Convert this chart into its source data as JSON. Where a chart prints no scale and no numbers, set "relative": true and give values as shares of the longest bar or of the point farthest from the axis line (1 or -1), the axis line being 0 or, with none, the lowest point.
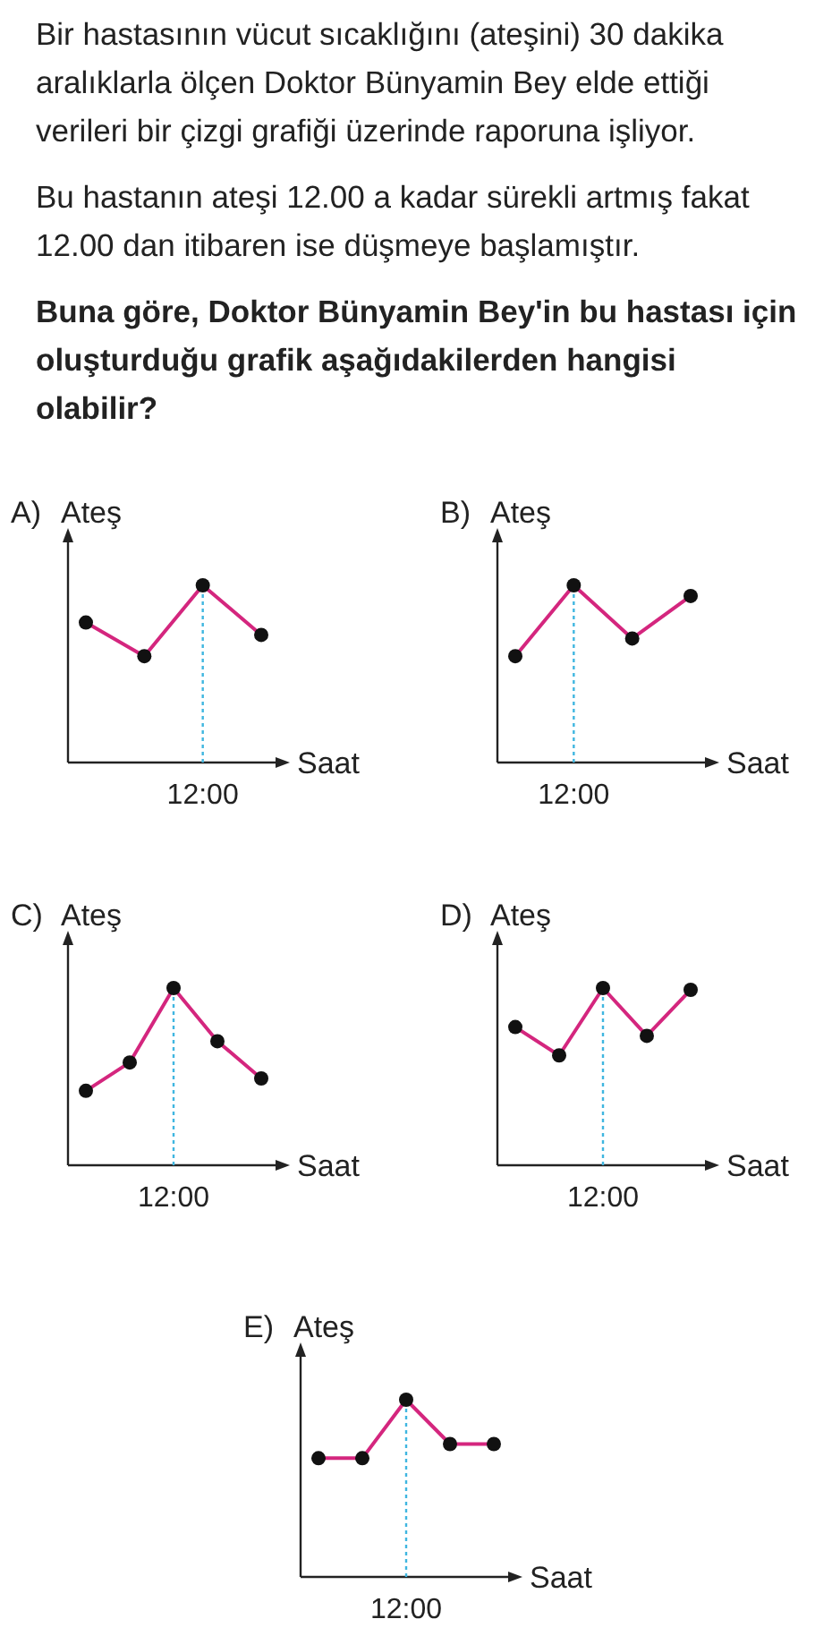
{
  "chart_data": [
    {
      "type": "other",
      "annotations": [
        "Bir hastasının vücut sıcaklığını (ateşini) 30 dakika aralıklarla ölçen Doktor Bünyamin Bey elde ettiği verileri bir çizgi grafiği üzerinde raporuna işliyor.",
        "Bu hastanın ateşi 12.00 a kadar sürekli artmış fakat 12.00 dan itibaren ise düşmeye başlamıştır.",
        "Buna göre, Doktor Bünyamin Bey'in bu hastası için oluşturduğu grafik aşağıdakilerden hangisi olabilir?"
      ]
    },
    {
      "type": "line",
      "title": "A)",
      "xlabel": "Saat",
      "ylabel": "Ateş",
      "relative": true,
      "marker": "circle",
      "categories": [
        null,
        null,
        null,
        null
      ],
      "series": [
        {
          "color": "#d4267e",
          "values": [
            0.79,
            0.6,
            1,
            0.72
          ]
        }
      ],
      "ref_lines": [
        {
          "axis": "x",
          "value": "12:00",
          "color": "#3fb6e0",
          "line_style": "dotted"
        }
      ]
    },
    {
      "type": "line",
      "title": "B)",
      "xlabel": "Saat",
      "ylabel": "Ateş",
      "relative": true,
      "marker": "circle",
      "categories": [
        null,
        null,
        null,
        null
      ],
      "series": [
        {
          "color": "#d4267e",
          "values": [
            0.6,
            1,
            0.7,
            0.94
          ]
        }
      ],
      "ref_lines": [
        {
          "axis": "x",
          "value": "12:00",
          "color": "#3fb6e0",
          "line_style": "dotted"
        }
      ]
    },
    {
      "type": "line",
      "title": "C)",
      "xlabel": "Saat",
      "ylabel": "Ateş",
      "relative": true,
      "marker": "circle",
      "categories": [
        null,
        null,
        null,
        null,
        null
      ],
      "series": [
        {
          "color": "#d4267e",
          "values": [
            0.42,
            0.58,
            1,
            0.7,
            0.49
          ]
        }
      ],
      "ref_lines": [
        {
          "axis": "x",
          "value": "12:00",
          "color": "#3fb6e0",
          "line_style": "dotted"
        }
      ]
    },
    {
      "type": "line",
      "title": "D)",
      "xlabel": "Saat",
      "ylabel": "Ateş",
      "relative": true,
      "marker": "circle",
      "categories": [
        null,
        null,
        null,
        null,
        null
      ],
      "series": [
        {
          "color": "#d4267e",
          "values": [
            0.78,
            0.62,
            1,
            0.73,
            0.99
          ]
        }
      ],
      "ref_lines": [
        {
          "axis": "x",
          "value": "12:00",
          "color": "#3fb6e0",
          "line_style": "dotted"
        }
      ]
    },
    {
      "type": "line",
      "title": "E)",
      "xlabel": "Saat",
      "ylabel": "Ateş",
      "relative": true,
      "marker": "circle",
      "categories": [
        null,
        null,
        null,
        null,
        null
      ],
      "series": [
        {
          "color": "#d4267e",
          "values": [
            0.67,
            0.67,
            1,
            0.75,
            0.75
          ]
        }
      ],
      "ref_lines": [
        {
          "axis": "x",
          "value": "12:00",
          "color": "#3fb6e0",
          "line_style": "dotted"
        }
      ]
    }
  ]
}
